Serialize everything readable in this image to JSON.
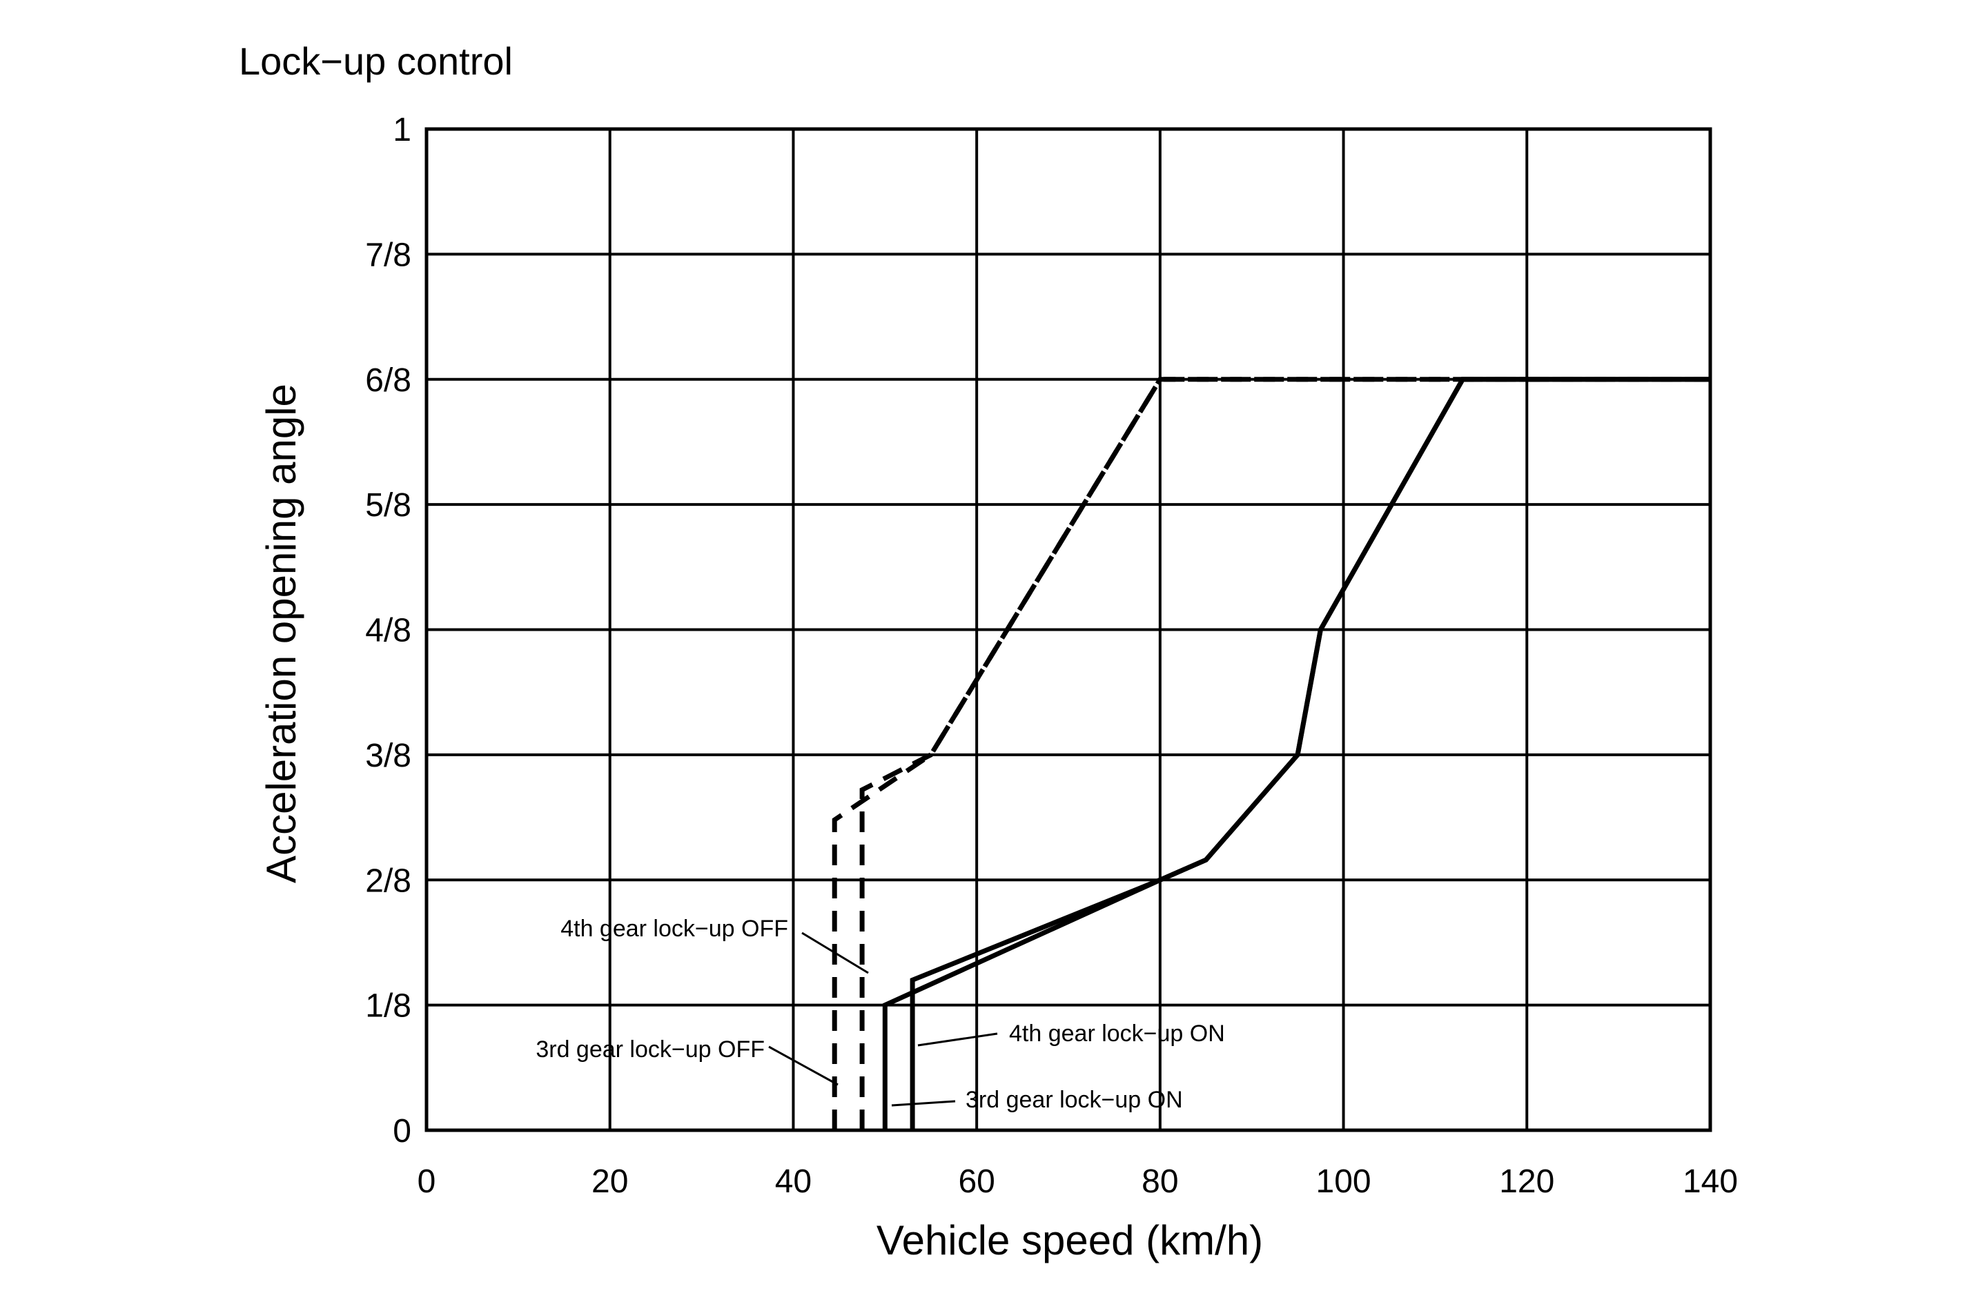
{
  "chart_data": {
    "type": "line",
    "title": "Lock−up control",
    "xlabel": "Vehicle speed (km/h)",
    "ylabel": "Acceleration opening angle",
    "xlim": [
      0,
      140
    ],
    "ylim": [
      0,
      1
    ],
    "x_ticks": [
      0,
      20,
      40,
      60,
      80,
      100,
      120,
      140
    ],
    "x_tick_labels": [
      "0",
      "20",
      "40",
      "60",
      "80",
      "100",
      "120",
      "140"
    ],
    "y_ticks": [
      0,
      0.125,
      0.25,
      0.375,
      0.5,
      0.625,
      0.75,
      0.875,
      1
    ],
    "y_tick_labels": [
      "0",
      "1/8",
      "2/8",
      "3/8",
      "4/8",
      "5/8",
      "6/8",
      "7/8",
      "1"
    ],
    "grid": true,
    "legend": "none",
    "series": [
      {
        "name": "3rd gear lock−up OFF",
        "style": "dashed",
        "x": [
          44.5,
          44.5,
          55,
          80,
          140
        ],
        "y": [
          0,
          0.31,
          0.375,
          0.75,
          0.75
        ]
      },
      {
        "name": "4th gear lock−up OFF",
        "style": "dashed",
        "x": [
          47.5,
          47.5,
          55,
          80,
          140
        ],
        "y": [
          0,
          0.34,
          0.375,
          0.75,
          0.75
        ]
      },
      {
        "name": "3rd gear lock−up ON",
        "style": "solid",
        "x": [
          50,
          50,
          80,
          85,
          95,
          97.5,
          113,
          140
        ],
        "y": [
          0,
          0.125,
          0.25,
          0.27,
          0.375,
          0.5,
          0.75,
          0.75
        ]
      },
      {
        "name": "4th gear lock−up ON",
        "style": "solid",
        "x": [
          53,
          53,
          80,
          85,
          95,
          97.5,
          113,
          140
        ],
        "y": [
          0,
          0.15,
          0.25,
          0.27,
          0.375,
          0.5,
          0.75,
          0.75
        ]
      }
    ],
    "annotations": [
      {
        "text": "4th gear lock−up OFF",
        "series": 1
      },
      {
        "text": "3rd gear lock−up OFF",
        "series": 0
      },
      {
        "text": "4th gear lock−up ON",
        "series": 3
      },
      {
        "text": "3rd gear lock−up ON",
        "series": 2
      }
    ],
    "line_color": "#000000",
    "grid_color": "#000000",
    "background_color": "#ffffff"
  }
}
